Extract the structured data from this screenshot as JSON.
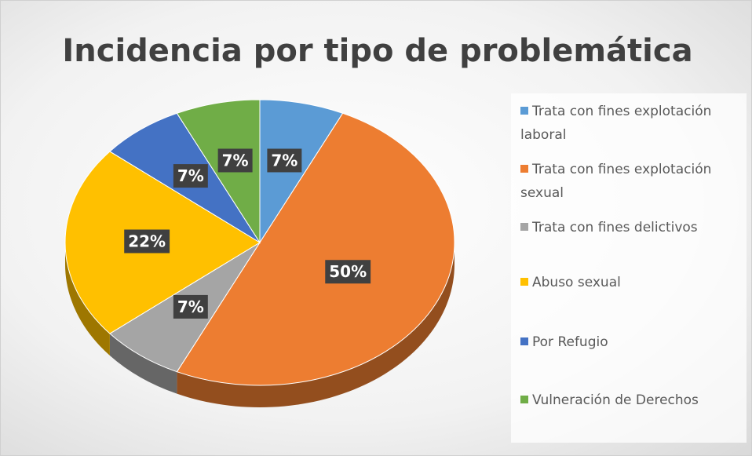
{
  "chart_data": {
    "type": "pie",
    "title": "Incidencia por tipo de problemática",
    "categories": [
      "Trata con fines explotación laboral",
      "Trata con fines explotación sexual",
      "Trata con fines delictivos",
      "Abuso sexual",
      "Por Refugio",
      "Vulneración de Derechos"
    ],
    "values": [
      7,
      50,
      7,
      22,
      7,
      7
    ],
    "value_labels": [
      "7%",
      "50%",
      "7%",
      "22%",
      "7%",
      "7%"
    ],
    "colors": [
      "#5b9bd5",
      "#ed7d31",
      "#a5a5a5",
      "#ffc000",
      "#4472c4",
      "#70ad47"
    ],
    "legend": "right"
  }
}
